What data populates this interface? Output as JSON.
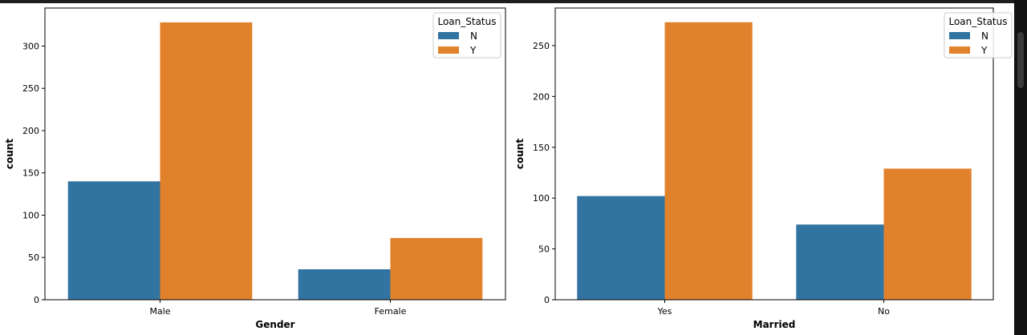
{
  "colors": {
    "N": "#3274a1",
    "Y": "#e1812c",
    "frame": "#000000",
    "legend_border": "#cccccc"
  },
  "chart_data": [
    {
      "type": "bar",
      "xlabel": "Gender",
      "ylabel": "count",
      "categories": [
        "Male",
        "Female"
      ],
      "ylim": [
        0,
        345
      ],
      "yticks": [
        0,
        50,
        100,
        150,
        200,
        250,
        300
      ],
      "legend": {
        "title": "Loan_Status",
        "placement": "top-right"
      },
      "series": [
        {
          "name": "N",
          "values": [
            140,
            36
          ]
        },
        {
          "name": "Y",
          "values": [
            328,
            73
          ]
        }
      ]
    },
    {
      "type": "bar",
      "xlabel": "Married",
      "ylabel": "count",
      "categories": [
        "Yes",
        "No"
      ],
      "ylim": [
        0,
        287
      ],
      "yticks": [
        0,
        50,
        100,
        150,
        200,
        250
      ],
      "legend": {
        "title": "Loan_Status",
        "placement": "top-right"
      },
      "series": [
        {
          "name": "N",
          "values": [
            102,
            74
          ]
        },
        {
          "name": "Y",
          "values": [
            273,
            129
          ]
        }
      ]
    }
  ]
}
